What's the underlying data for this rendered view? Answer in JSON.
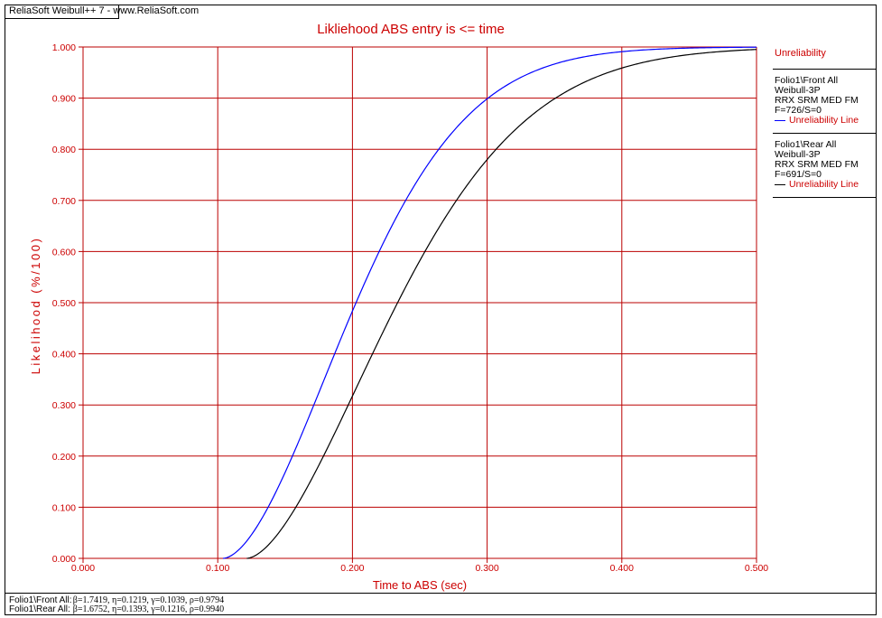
{
  "window": {
    "app_header": "ReliaSoft Weibull++ 7 - www.ReliaSoft.com"
  },
  "chart_data": {
    "type": "line",
    "title": "Likliehood ABS entry is <= time",
    "xlabel": "Time to ABS (sec)",
    "ylabel": "Likelihood (%/100)",
    "xlim": [
      0.0,
      0.5
    ],
    "ylim": [
      0.0,
      1.0
    ],
    "x_ticks": [
      "0.000",
      "0.100",
      "0.200",
      "0.300",
      "0.400",
      "0.500"
    ],
    "y_ticks": [
      "0.000",
      "0.100",
      "0.200",
      "0.300",
      "0.400",
      "0.500",
      "0.600",
      "0.700",
      "0.800",
      "0.900",
      "1.000"
    ],
    "grid": true,
    "legend_placement": "right",
    "series": [
      {
        "name": "Folio1\\Front All",
        "model": "Weibull-3P",
        "beta": 1.7419,
        "eta": 0.1219,
        "gamma": 0.1039,
        "color": "#0000ff"
      },
      {
        "name": "Folio1\\Rear All",
        "model": "Weibull-3P",
        "beta": 1.6752,
        "eta": 0.1393,
        "gamma": 0.1216,
        "color": "#000000"
      }
    ]
  },
  "legend": {
    "title": "Unreliability",
    "entries": [
      {
        "folio": "Folio1\\Front All",
        "model": "Weibull-3P",
        "method": "RRX SRM MED FM",
        "counts": "F=726/S=0",
        "line_label": "Unreliability Line",
        "color": "#0000ff"
      },
      {
        "folio": "Folio1\\Rear All",
        "model": "Weibull-3P",
        "method": "RRX SRM MED FM",
        "counts": "F=691/S=0",
        "line_label": "Unreliability Line",
        "color": "#000000"
      }
    ]
  },
  "footer": {
    "rows": [
      {
        "name": "Folio1\\Front All:",
        "params": "β=1.7419, η=0.1219, γ=0.1039, ρ=0.9794"
      },
      {
        "name": "Folio1\\Rear All:",
        "params": "β=1.6752, η=0.1393, γ=0.1216, ρ=0.9940"
      }
    ]
  },
  "colors": {
    "grid": "#bb0000",
    "axis_text": "#cc0000"
  }
}
